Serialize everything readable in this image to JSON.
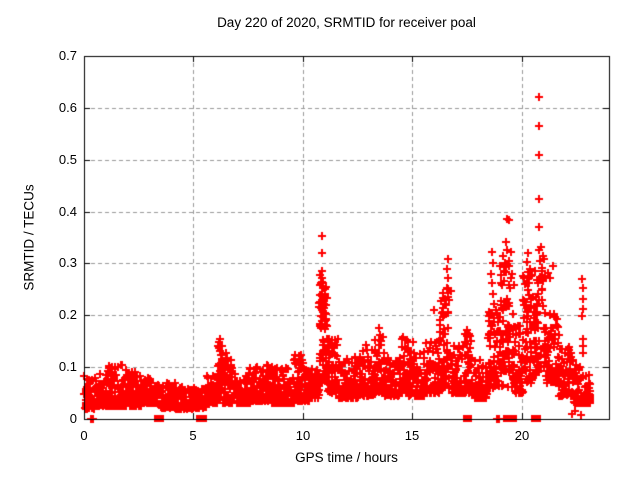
{
  "chart_data": {
    "type": "scatter",
    "title": "Day 220 of 2020, SRMTID for receiver poal",
    "xlabel": "GPS time / hours",
    "ylabel": "SRMTID / TECUs",
    "xlim": [
      0,
      24
    ],
    "ylim": [
      0,
      0.7
    ],
    "xticks": [
      0,
      5,
      10,
      15,
      20
    ],
    "xtick_labels": [
      "0",
      "5",
      "10",
      "15",
      "20"
    ],
    "yticks": [
      0,
      0.1,
      0.2,
      0.3,
      0.4,
      0.5,
      0.6,
      0.7
    ],
    "ytick_labels": [
      "0",
      "0.1",
      "0.2",
      "0.3",
      "0.4",
      "0.5",
      "0.6",
      "0.7"
    ],
    "grid": "dashed-gray-at-major-ticks",
    "legend": "none",
    "marker": "plus",
    "colors": {
      "points": "#ff0000",
      "grid": "#999999",
      "axis": "#000000",
      "background": "#ffffff",
      "text": "#000000"
    },
    "seed": 20200220,
    "band_segments": [
      [
        0.0,
        0.5,
        0.02,
        0.085,
        60,
        2.2
      ],
      [
        0.5,
        1.0,
        0.025,
        0.09,
        60,
        2.2
      ],
      [
        1.0,
        1.8,
        0.025,
        0.105,
        95,
        2.2
      ],
      [
        1.8,
        2.6,
        0.025,
        0.095,
        95,
        2.2
      ],
      [
        2.6,
        3.4,
        0.03,
        0.08,
        90,
        2.2
      ],
      [
        3.4,
        4.2,
        0.022,
        0.07,
        90,
        2.2
      ],
      [
        4.2,
        5.0,
        0.02,
        0.062,
        85,
        2.2
      ],
      [
        5.0,
        5.6,
        0.022,
        0.06,
        65,
        2.2
      ],
      [
        5.6,
        6.1,
        0.03,
        0.085,
        55,
        2.2
      ],
      [
        6.1,
        6.35,
        0.05,
        0.145,
        35,
        1.6
      ],
      [
        6.35,
        6.8,
        0.03,
        0.115,
        50,
        2.0
      ],
      [
        6.8,
        7.6,
        0.03,
        0.09,
        85,
        2.2
      ],
      [
        7.6,
        8.6,
        0.035,
        0.105,
        110,
        2.2
      ],
      [
        8.6,
        9.6,
        0.03,
        0.1,
        110,
        2.2
      ],
      [
        9.6,
        10.3,
        0.035,
        0.125,
        80,
        2.0
      ],
      [
        10.3,
        10.75,
        0.04,
        0.1,
        50,
        2.2
      ],
      [
        10.75,
        11.15,
        0.07,
        0.28,
        70,
        1.4
      ],
      [
        11.15,
        11.6,
        0.05,
        0.155,
        55,
        1.8
      ],
      [
        11.6,
        12.6,
        0.04,
        0.12,
        110,
        2.2
      ],
      [
        12.6,
        13.3,
        0.045,
        0.135,
        80,
        2.2
      ],
      [
        13.3,
        13.75,
        0.05,
        0.16,
        50,
        1.8
      ],
      [
        13.75,
        14.4,
        0.045,
        0.12,
        70,
        2.2
      ],
      [
        14.4,
        14.85,
        0.05,
        0.155,
        50,
        1.8
      ],
      [
        14.85,
        15.6,
        0.045,
        0.13,
        80,
        2.2
      ],
      [
        15.6,
        16.25,
        0.05,
        0.15,
        70,
        2.0
      ],
      [
        16.25,
        16.8,
        0.06,
        0.25,
        65,
        1.6
      ],
      [
        16.8,
        17.35,
        0.05,
        0.145,
        60,
        2.0
      ],
      [
        17.35,
        17.8,
        0.05,
        0.165,
        50,
        2.0
      ],
      [
        17.8,
        18.45,
        0.04,
        0.115,
        70,
        2.2
      ],
      [
        18.45,
        19.0,
        0.06,
        0.21,
        70,
        1.5
      ],
      [
        19.0,
        19.65,
        0.06,
        0.3,
        85,
        1.3
      ],
      [
        19.65,
        20.05,
        0.05,
        0.185,
        45,
        1.8
      ],
      [
        20.05,
        20.65,
        0.07,
        0.29,
        80,
        1.3
      ],
      [
        20.65,
        21.1,
        0.09,
        0.31,
        60,
        1.5
      ],
      [
        21.1,
        21.7,
        0.07,
        0.21,
        65,
        1.8
      ],
      [
        21.7,
        22.35,
        0.045,
        0.14,
        70,
        2.2
      ],
      [
        22.35,
        22.85,
        0.03,
        0.105,
        65,
        2.2
      ],
      [
        22.85,
        23.15,
        0.03,
        0.09,
        35,
        2.2
      ]
    ],
    "feature_points": [
      [
        0.0,
        0.083
      ],
      [
        0.3,
        0.0
      ],
      [
        0.4,
        0.0
      ],
      [
        18.9,
        0.0
      ],
      [
        18.98,
        0.0
      ],
      [
        22.3,
        0.01
      ],
      [
        22.45,
        0.015
      ],
      [
        22.7,
        0.008
      ],
      [
        6.18,
        0.148
      ],
      [
        6.2,
        0.155
      ],
      [
        6.21,
        0.14
      ],
      [
        6.23,
        0.131
      ],
      [
        6.26,
        0.124
      ],
      [
        6.5,
        0.128
      ],
      [
        6.55,
        0.118
      ],
      [
        10.87,
        0.352
      ],
      [
        10.9,
        0.32
      ],
      [
        10.88,
        0.285
      ],
      [
        10.9,
        0.272
      ],
      [
        10.85,
        0.262
      ],
      [
        10.92,
        0.252
      ],
      [
        10.88,
        0.242
      ],
      [
        10.95,
        0.228
      ],
      [
        10.83,
        0.215
      ],
      [
        11.0,
        0.205
      ],
      [
        11.05,
        0.19
      ],
      [
        10.8,
        0.18
      ],
      [
        12.9,
        0.142
      ],
      [
        12.95,
        0.133
      ],
      [
        13.5,
        0.175
      ],
      [
        13.52,
        0.162
      ],
      [
        13.47,
        0.152
      ],
      [
        14.6,
        0.158
      ],
      [
        14.75,
        0.152
      ],
      [
        15.05,
        0.148
      ],
      [
        16.0,
        0.21
      ],
      [
        16.62,
        0.308
      ],
      [
        16.6,
        0.29
      ],
      [
        16.64,
        0.272
      ],
      [
        16.6,
        0.252
      ],
      [
        16.65,
        0.235
      ],
      [
        16.57,
        0.22
      ],
      [
        16.62,
        0.205
      ],
      [
        17.5,
        0.172
      ],
      [
        17.53,
        0.16
      ],
      [
        18.65,
        0.322
      ],
      [
        18.68,
        0.3
      ],
      [
        18.6,
        0.28
      ],
      [
        18.63,
        0.262
      ],
      [
        18.7,
        0.242
      ],
      [
        18.73,
        0.222
      ],
      [
        18.58,
        0.205
      ],
      [
        19.35,
        0.386
      ],
      [
        19.44,
        0.384
      ],
      [
        19.3,
        0.342
      ],
      [
        19.32,
        0.325
      ],
      [
        19.15,
        0.315
      ],
      [
        19.5,
        0.322
      ],
      [
        19.42,
        0.305
      ],
      [
        19.25,
        0.3
      ],
      [
        19.2,
        0.285
      ],
      [
        19.55,
        0.28
      ],
      [
        20.3,
        0.32
      ],
      [
        20.25,
        0.302
      ],
      [
        20.38,
        0.29
      ],
      [
        20.45,
        0.275
      ],
      [
        20.15,
        0.26
      ],
      [
        20.8,
        0.62
      ],
      [
        20.8,
        0.565
      ],
      [
        20.81,
        0.51
      ],
      [
        20.82,
        0.425
      ],
      [
        20.8,
        0.37
      ],
      [
        20.82,
        0.325
      ],
      [
        20.85,
        0.305
      ],
      [
        20.9,
        0.332
      ],
      [
        20.97,
        0.315
      ],
      [
        21.02,
        0.308
      ],
      [
        21.45,
        0.296
      ],
      [
        21.3,
        0.272
      ],
      [
        21.2,
        0.282
      ],
      [
        22.78,
        0.27
      ],
      [
        22.8,
        0.252
      ],
      [
        22.79,
        0.232
      ],
      [
        22.82,
        0.212
      ],
      [
        22.78,
        0.198
      ],
      [
        22.8,
        0.155
      ],
      [
        22.83,
        0.14
      ],
      [
        22.79,
        0.128
      ]
    ],
    "zero_square_hours": [
      3.38,
      3.48,
      5.3,
      5.42,
      17.5,
      17.56,
      19.32,
      19.42,
      19.52,
      19.62,
      20.62,
      20.72
    ]
  }
}
